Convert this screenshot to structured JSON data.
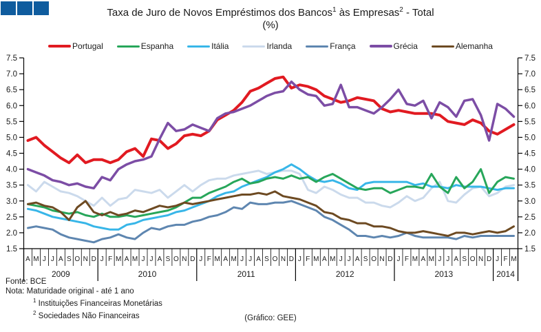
{
  "logo_color": "#0f5c9e",
  "title": {
    "part1": "Taxa de Juro de Novos Empréstimos dos Bancos",
    "sup1": "1",
    "part2": " às Empresas",
    "sup2": "2",
    "part3": " - Total",
    "unit": "(%)"
  },
  "footer": {
    "source": "Fonte: BCE",
    "note": "Nota: Maturidade original - até 1 ano",
    "note1_sup": "1",
    "note1": " Instituições Financeiras Monetárias",
    "note2_sup": "2",
    "note2": " Sociedades Não Financeiras",
    "credit": "(Gráfico: GEE)"
  },
  "chart_data": {
    "type": "line",
    "title": "Taxa de Juro de Novos Empréstimos dos Bancos às Empresas - Total (%)",
    "ylabel": "%",
    "y_axis": {
      "min": 1.5,
      "max": 7.5,
      "step": 0.5,
      "labels_both_sides": true
    },
    "x_axis": {
      "years": [
        {
          "year": "2009",
          "months": [
            "A",
            "M",
            "J",
            "J",
            "A",
            "S",
            "O",
            "N",
            "D"
          ]
        },
        {
          "year": "2010",
          "months": [
            "J",
            "F",
            "M",
            "A",
            "M",
            "J",
            "J",
            "A",
            "S",
            "O",
            "N",
            "D"
          ]
        },
        {
          "year": "2011",
          "months": [
            "J",
            "F",
            "M",
            "A",
            "M",
            "J",
            "J",
            "A",
            "S",
            "O",
            "N",
            "D"
          ]
        },
        {
          "year": "2012",
          "months": [
            "J",
            "F",
            "M",
            "A",
            "M",
            "J",
            "J",
            "A",
            "S",
            "O",
            "N",
            "D"
          ]
        },
        {
          "year": "2013",
          "months": [
            "J",
            "F",
            "M",
            "A",
            "M",
            "J",
            "J",
            "A",
            "S",
            "O",
            "N",
            "D"
          ]
        },
        {
          "year": "2014",
          "months": [
            "J",
            "F",
            "M"
          ]
        }
      ]
    },
    "legend_position": "top",
    "grid": false,
    "series": [
      {
        "name": "Portugal",
        "color": "#e11a21",
        "width": 4,
        "values": [
          4.9,
          5.0,
          4.75,
          4.55,
          4.35,
          4.2,
          4.45,
          4.2,
          4.3,
          4.3,
          4.2,
          4.3,
          4.55,
          4.65,
          4.4,
          4.95,
          4.9,
          4.65,
          4.8,
          5.05,
          5.1,
          5.05,
          5.2,
          5.55,
          5.7,
          5.85,
          6.1,
          6.45,
          6.55,
          6.7,
          6.85,
          6.9,
          6.55,
          6.65,
          6.6,
          6.5,
          6.3,
          6.2,
          6.1,
          6.15,
          6.25,
          6.2,
          6.15,
          5.9,
          5.8,
          5.85,
          5.8,
          5.75,
          5.75,
          5.75,
          5.7,
          5.5,
          5.45,
          5.4,
          5.55,
          5.45,
          5.2,
          5.1,
          5.25,
          5.4
        ]
      },
      {
        "name": "Espanha",
        "color": "#27a65a",
        "width": 3,
        "values": [
          2.9,
          2.85,
          2.8,
          2.7,
          2.65,
          2.6,
          2.65,
          2.55,
          2.5,
          2.6,
          2.5,
          2.5,
          2.55,
          2.5,
          2.55,
          2.6,
          2.65,
          2.7,
          2.8,
          2.95,
          3.1,
          3.1,
          3.25,
          3.35,
          3.45,
          3.6,
          3.7,
          3.55,
          3.6,
          3.7,
          3.75,
          3.7,
          3.8,
          3.7,
          3.75,
          3.6,
          3.75,
          3.85,
          3.7,
          3.55,
          3.4,
          3.35,
          3.4,
          3.4,
          3.25,
          3.35,
          3.45,
          3.45,
          3.4,
          3.85,
          3.45,
          3.25,
          3.75,
          3.4,
          3.6,
          4.0,
          3.25,
          3.6,
          3.75,
          3.7
        ]
      },
      {
        "name": "Itália",
        "color": "#38b6e8",
        "width": 3,
        "values": [
          2.75,
          2.7,
          2.6,
          2.5,
          2.45,
          2.4,
          2.35,
          2.3,
          2.2,
          2.15,
          2.1,
          2.1,
          2.25,
          2.3,
          2.4,
          2.45,
          2.5,
          2.55,
          2.65,
          2.7,
          2.8,
          2.9,
          3.0,
          3.15,
          3.25,
          3.3,
          3.45,
          3.55,
          3.65,
          3.75,
          3.9,
          4.0,
          4.15,
          4.0,
          3.8,
          3.65,
          3.6,
          3.65,
          3.55,
          3.4,
          3.35,
          3.55,
          3.6,
          3.6,
          3.6,
          3.6,
          3.6,
          3.5,
          3.55,
          3.45,
          3.45,
          3.4,
          3.5,
          3.45,
          3.45,
          3.45,
          3.4,
          3.35,
          3.4,
          3.4
        ]
      },
      {
        "name": "Irlanda",
        "color": "#cbdaec",
        "width": 3,
        "values": [
          3.5,
          3.3,
          3.6,
          3.45,
          3.3,
          3.25,
          3.15,
          3.0,
          2.85,
          3.1,
          2.85,
          3.05,
          3.1,
          3.35,
          3.3,
          3.25,
          3.35,
          3.1,
          3.3,
          3.5,
          3.3,
          3.5,
          3.65,
          3.7,
          3.7,
          3.8,
          3.85,
          3.9,
          3.95,
          3.85,
          3.9,
          3.95,
          3.95,
          3.85,
          3.35,
          3.25,
          3.45,
          3.35,
          3.2,
          3.1,
          3.1,
          2.95,
          2.95,
          2.85,
          2.8,
          2.95,
          3.15,
          3.0,
          3.1,
          3.4,
          3.6,
          3.0,
          2.95,
          3.2,
          3.4,
          3.45,
          3.15,
          3.25,
          3.45,
          3.5
        ]
      },
      {
        "name": "França",
        "color": "#5e86b0",
        "width": 3,
        "values": [
          2.15,
          2.2,
          2.15,
          2.1,
          1.95,
          1.85,
          1.8,
          1.75,
          1.7,
          1.8,
          1.85,
          1.95,
          1.85,
          1.8,
          2.0,
          2.15,
          2.1,
          2.2,
          2.25,
          2.25,
          2.35,
          2.4,
          2.5,
          2.55,
          2.65,
          2.8,
          2.75,
          2.95,
          2.9,
          2.9,
          2.95,
          2.95,
          3.0,
          2.9,
          2.8,
          2.7,
          2.5,
          2.4,
          2.25,
          2.1,
          1.9,
          1.9,
          1.85,
          1.9,
          1.85,
          1.9,
          2.0,
          1.9,
          1.85,
          1.85,
          1.85,
          1.85,
          1.8,
          1.9,
          1.85,
          1.9,
          1.9,
          1.9,
          1.9,
          1.9
        ]
      },
      {
        "name": "Grécia",
        "color": "#7c4da5",
        "width": 3.5,
        "values": [
          4.0,
          3.9,
          3.8,
          3.65,
          3.6,
          3.5,
          3.55,
          3.45,
          3.4,
          3.75,
          3.65,
          4.0,
          4.15,
          4.25,
          4.3,
          4.4,
          4.95,
          5.45,
          5.2,
          5.25,
          5.4,
          5.3,
          5.2,
          5.6,
          5.75,
          5.8,
          5.9,
          6.0,
          6.15,
          6.3,
          6.4,
          6.45,
          6.75,
          6.5,
          6.35,
          6.3,
          6.0,
          6.05,
          6.65,
          5.95,
          5.95,
          5.85,
          5.75,
          5.95,
          6.2,
          6.5,
          6.05,
          6.0,
          6.15,
          5.6,
          6.1,
          5.95,
          5.65,
          6.15,
          6.2,
          5.7,
          4.9,
          6.05,
          5.9,
          5.65
        ]
      },
      {
        "name": "Alemanha",
        "color": "#6d4a22",
        "width": 3,
        "values": [
          2.9,
          2.95,
          2.85,
          2.8,
          2.65,
          2.4,
          2.8,
          3.0,
          2.65,
          2.55,
          2.65,
          2.55,
          2.6,
          2.7,
          2.65,
          2.75,
          2.85,
          2.8,
          2.85,
          2.95,
          2.9,
          2.95,
          3.0,
          3.05,
          3.1,
          3.15,
          3.2,
          3.2,
          3.25,
          3.2,
          3.3,
          3.15,
          3.1,
          3.05,
          2.95,
          2.85,
          2.65,
          2.6,
          2.45,
          2.4,
          2.3,
          2.3,
          2.2,
          2.2,
          2.15,
          2.05,
          2.0,
          2.0,
          2.05,
          2.0,
          1.95,
          1.9,
          2.0,
          2.0,
          1.95,
          2.0,
          2.05,
          2.0,
          2.05,
          2.2
        ]
      }
    ]
  }
}
